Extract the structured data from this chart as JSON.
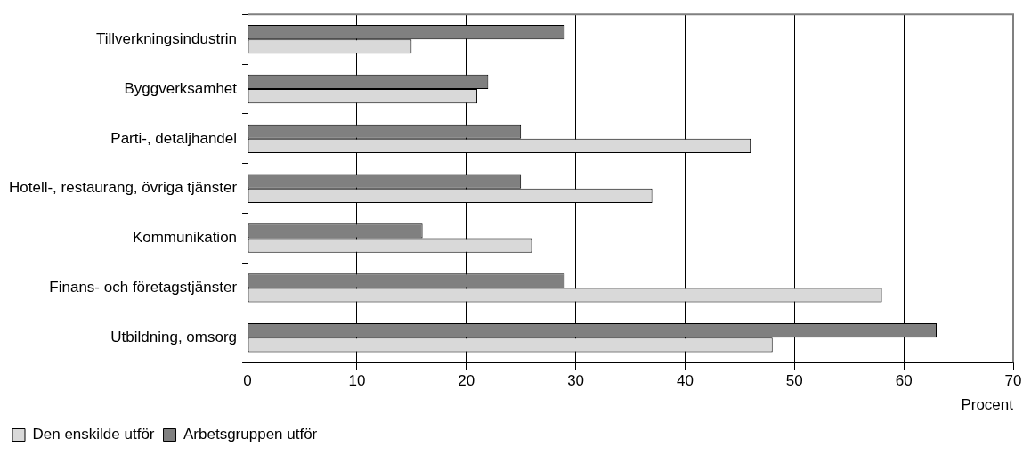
{
  "chart_data": {
    "type": "bar",
    "orientation": "horizontal",
    "xlabel": "Procent",
    "categories": [
      "Tillverkningsindustrin",
      "Byggverksamhet",
      "Parti-, detaljhandel",
      "Hotell-, restaurang, övriga tjänster",
      "Kommunikation",
      "Finans- och företagstjänster",
      "Utbildning, omsorg"
    ],
    "series": [
      {
        "name": "Den enskilde utför",
        "color": "#d9d9d9",
        "values": [
          15,
          21,
          46,
          37,
          26,
          58,
          48
        ]
      },
      {
        "name": "Arbetsgruppen utför",
        "color": "#808080",
        "values": [
          29,
          22,
          25,
          25,
          16,
          29,
          63
        ]
      }
    ],
    "xlim": [
      0,
      70
    ],
    "xticks": [
      0,
      10,
      20,
      30,
      40,
      50,
      60,
      70
    ],
    "grid": "x",
    "legend": "bottom left"
  }
}
